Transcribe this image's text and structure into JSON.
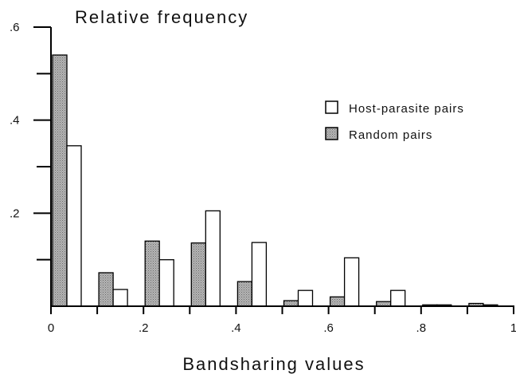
{
  "chart_data": {
    "type": "bar",
    "title": "",
    "ylabel": "Relative frequency",
    "xlabel": "Bandsharing values",
    "xlim": [
      0,
      1
    ],
    "ylim": [
      0,
      0.6
    ],
    "x_ticks": [
      {
        "value": 0,
        "label": "0"
      },
      {
        "value": 0.2,
        "label": ".2"
      },
      {
        "value": 0.4,
        "label": ".4"
      },
      {
        "value": 0.6,
        "label": ".6"
      },
      {
        "value": 0.8,
        "label": ".8"
      },
      {
        "value": 1,
        "label": "1"
      }
    ],
    "y_ticks": [
      {
        "value": 0.2,
        "label": ".2"
      },
      {
        "value": 0.4,
        "label": ".4"
      },
      {
        "value": 0.6,
        "label": ".6"
      }
    ],
    "bin_starts": [
      0,
      0.1,
      0.2,
      0.3,
      0.4,
      0.5,
      0.6,
      0.7,
      0.8,
      0.9
    ],
    "series": [
      {
        "name": "Random pairs",
        "fill": "#bdbdbd",
        "values": [
          0.54,
          0.072,
          0.14,
          0.136,
          0.053,
          0.012,
          0.02,
          0.01,
          0.003,
          0.006
        ]
      },
      {
        "name": "Host-parasite pairs",
        "fill": "#ffffff",
        "values": [
          0.345,
          0.036,
          0.1,
          0.205,
          0.137,
          0.034,
          0.104,
          0.034,
          0.003,
          0.003
        ]
      }
    ],
    "legend_position": "top-right",
    "grid": false
  }
}
